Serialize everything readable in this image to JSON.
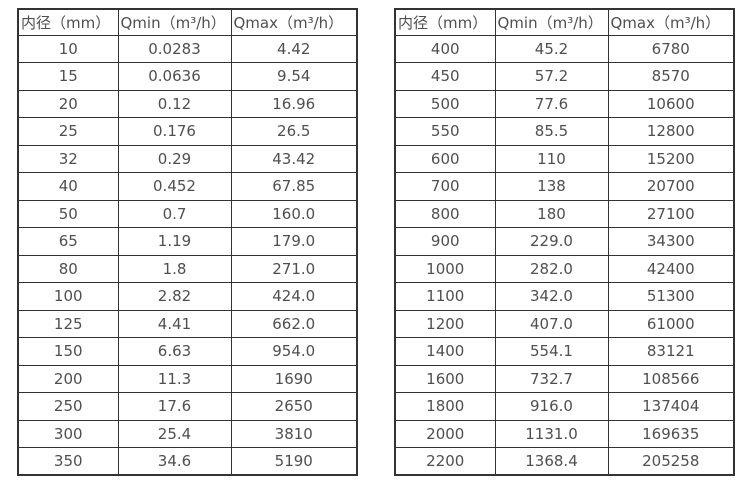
{
  "colors": {
    "background": "#ffffff",
    "text": "#4f4f4f",
    "border": "#333333"
  },
  "tables": [
    {
      "name": "flow-spec-table-small-diameters",
      "headers": [
        "内径（mm）",
        "Qmin（m³/h）",
        "Qmax（m³/h）"
      ],
      "rows": [
        [
          "10",
          "0.0283",
          "4.42"
        ],
        [
          "15",
          "0.0636",
          "9.54"
        ],
        [
          "20",
          "0.12",
          "16.96"
        ],
        [
          "25",
          "0.176",
          "26.5"
        ],
        [
          "32",
          "0.29",
          "43.42"
        ],
        [
          "40",
          "0.452",
          "67.85"
        ],
        [
          "50",
          "0.7",
          "160.0"
        ],
        [
          "65",
          "1.19",
          "179.0"
        ],
        [
          "80",
          "1.8",
          "271.0"
        ],
        [
          "100",
          "2.82",
          "424.0"
        ],
        [
          "125",
          "4.41",
          "662.0"
        ],
        [
          "150",
          "6.63",
          "954.0"
        ],
        [
          "200",
          "11.3",
          "1690"
        ],
        [
          "250",
          "17.6",
          "2650"
        ],
        [
          "300",
          "25.4",
          "3810"
        ],
        [
          "350",
          "34.6",
          "5190"
        ]
      ]
    },
    {
      "name": "flow-spec-table-large-diameters",
      "headers": [
        "内径（mm）",
        "Qmin（m³/h）",
        "Qmax（m³/h）"
      ],
      "rows": [
        [
          "400",
          "45.2",
          "6780"
        ],
        [
          "450",
          "57.2",
          "8570"
        ],
        [
          "500",
          "77.6",
          "10600"
        ],
        [
          "550",
          "85.5",
          "12800"
        ],
        [
          "600",
          "110",
          "15200"
        ],
        [
          "700",
          "138",
          "20700"
        ],
        [
          "800",
          "180",
          "27100"
        ],
        [
          "900",
          "229.0",
          "34300"
        ],
        [
          "1000",
          "282.0",
          "42400"
        ],
        [
          "1100",
          "342.0",
          "51300"
        ],
        [
          "1200",
          "407.0",
          "61000"
        ],
        [
          "1400",
          "554.1",
          "83121"
        ],
        [
          "1600",
          "732.7",
          "108566"
        ],
        [
          "1800",
          "916.0",
          "137404"
        ],
        [
          "2000",
          "1131.0",
          "169635"
        ],
        [
          "2200",
          "1368.4",
          "205258"
        ]
      ]
    }
  ]
}
